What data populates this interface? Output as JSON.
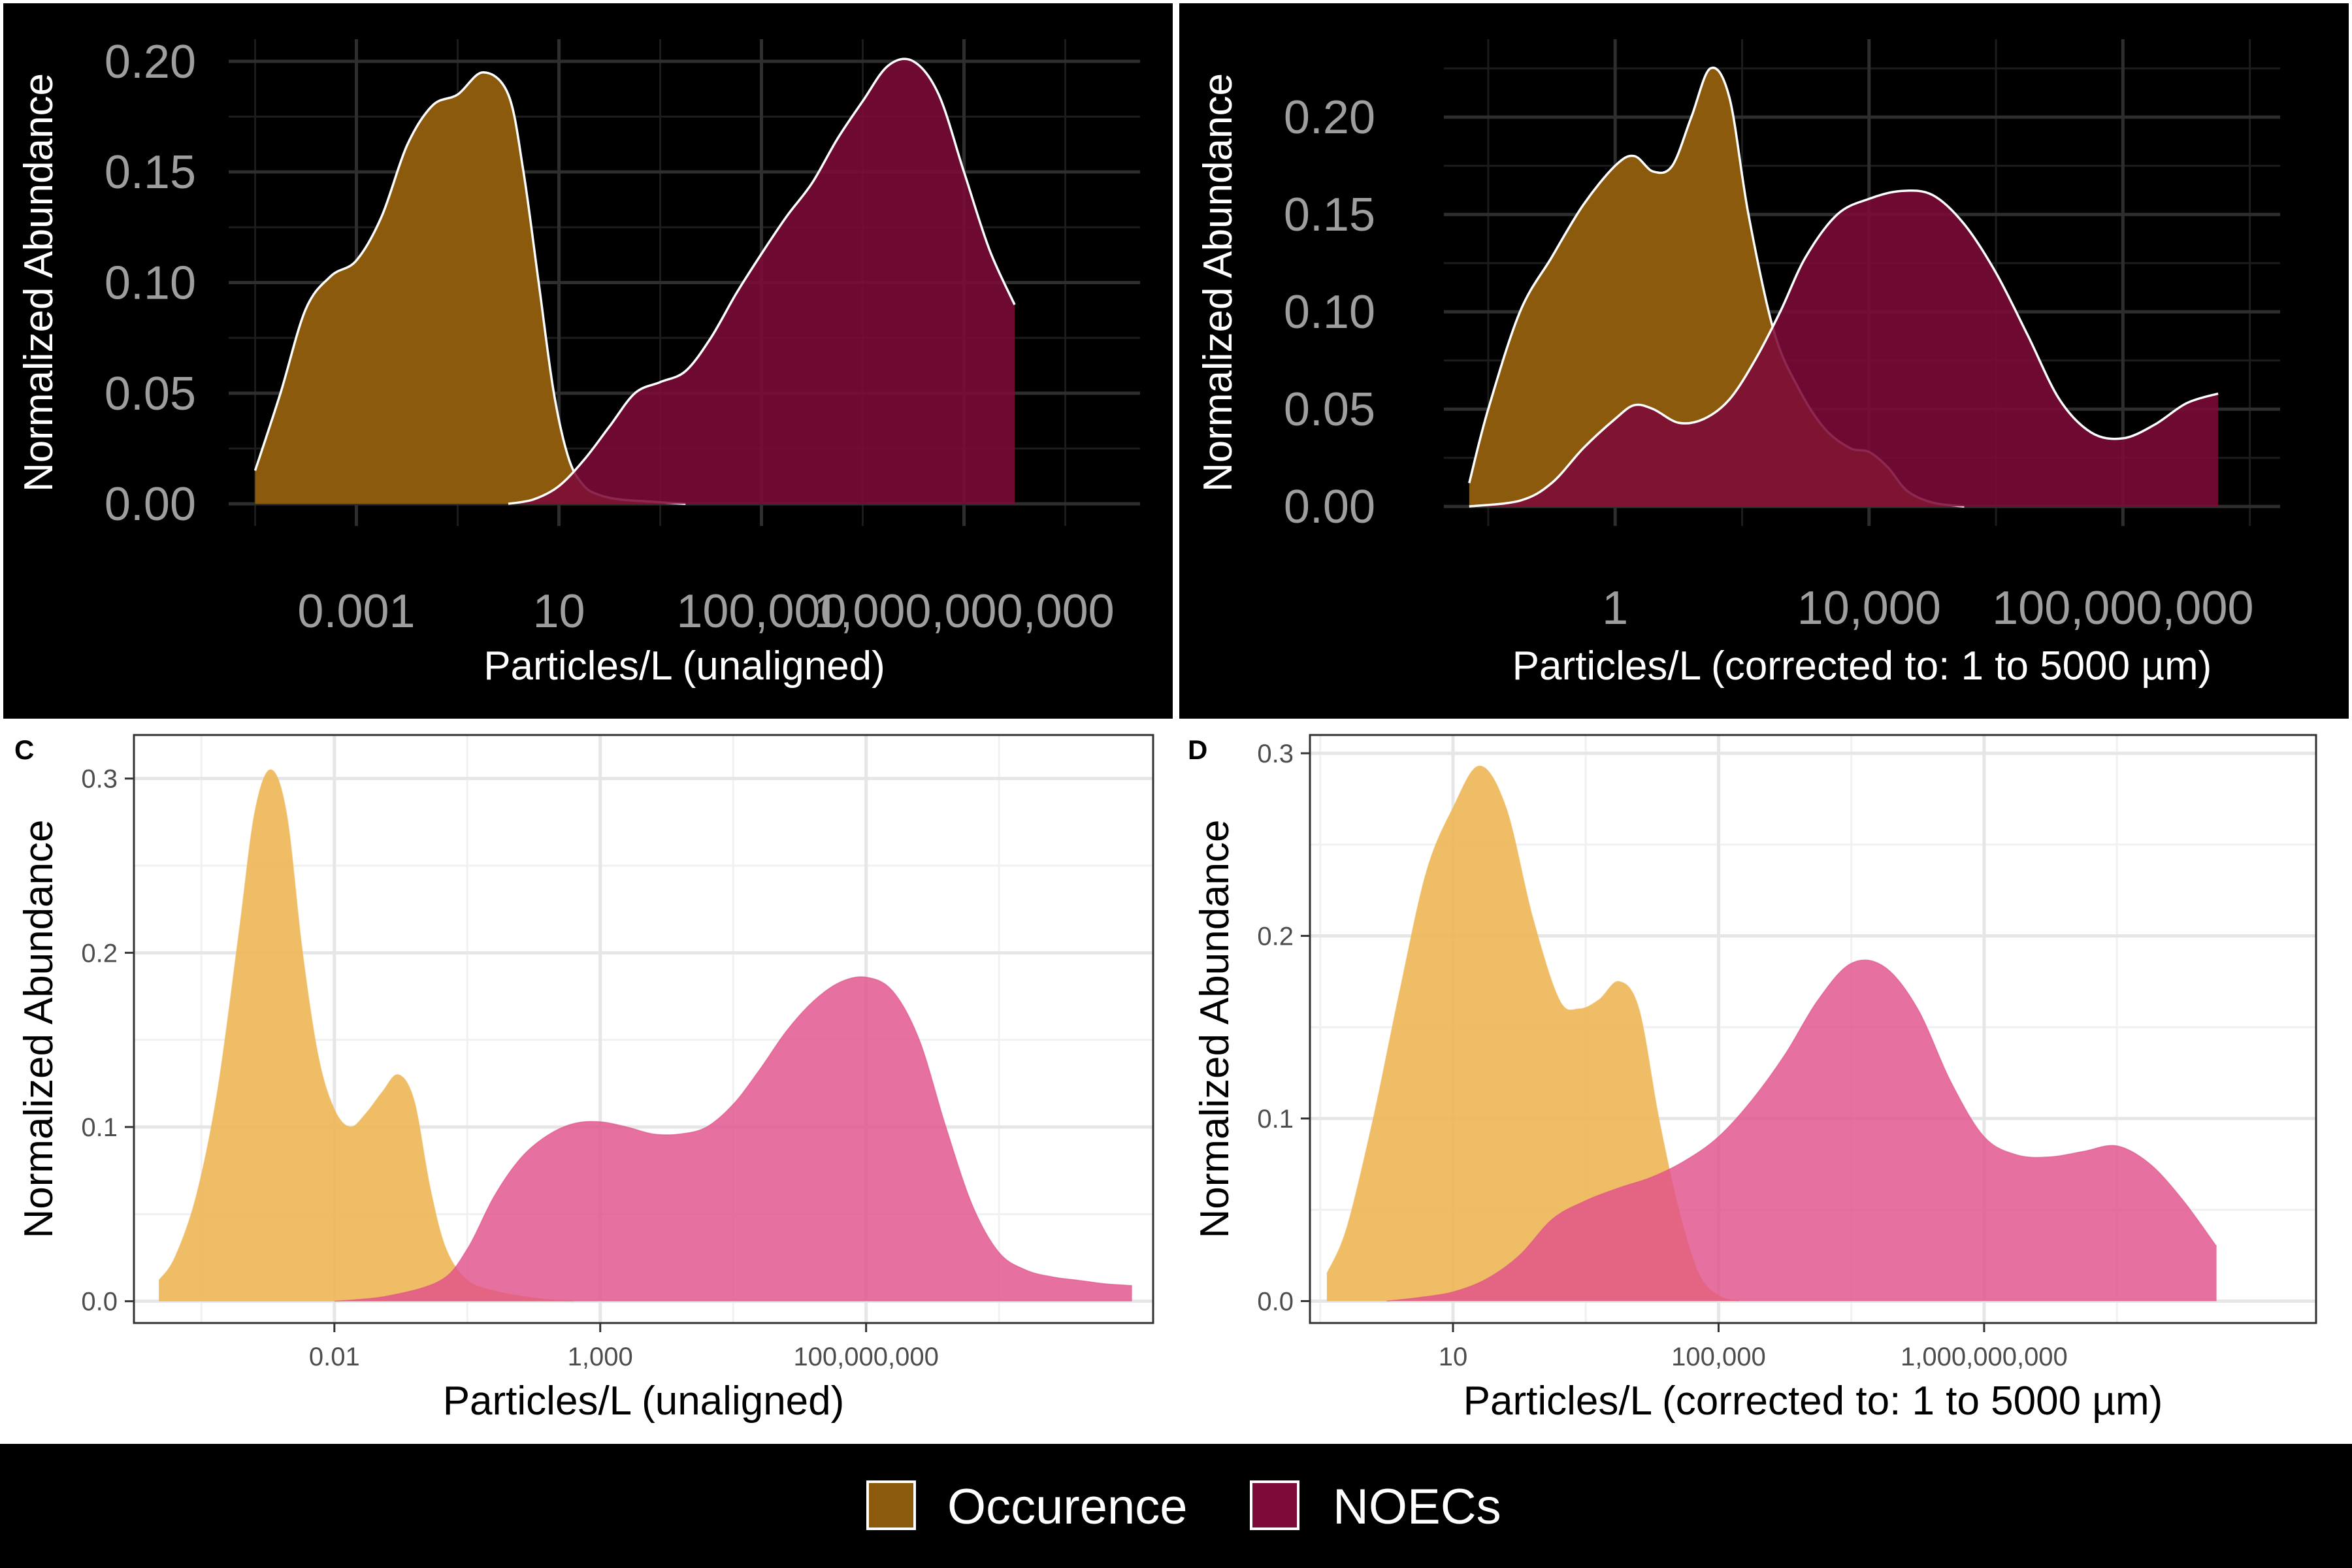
{
  "legend": {
    "items": [
      {
        "label": "Occurence",
        "color": "#8b5a0c"
      },
      {
        "label": "NOECs",
        "color": "#7d0a38"
      }
    ]
  },
  "chart_data": [
    {
      "panel": "",
      "type": "area",
      "theme": "dark",
      "title": "",
      "xlabel": "Particles/L (unaligned)",
      "ylabel": "Normalized Abundance",
      "x_scale": "log10",
      "xlim": [
        3e-06,
        3000000000000
      ],
      "ylim": [
        -0.01,
        0.21
      ],
      "x_ticks": [
        {
          "value": 0.001,
          "label": "0.001"
        },
        {
          "value": 10,
          "label": "10"
        },
        {
          "value": 100000,
          "label": "100,000"
        },
        {
          "value": 1000000000,
          "label": "1,000,000,000"
        }
      ],
      "y_ticks": [
        {
          "value": 0,
          "label": "0.00"
        },
        {
          "value": 0.05,
          "label": "0.05"
        },
        {
          "value": 0.1,
          "label": "0.10"
        },
        {
          "value": 0.15,
          "label": "0.15"
        },
        {
          "value": 0.2,
          "label": "0.20"
        }
      ],
      "grid": true,
      "series": [
        {
          "name": "Occurence",
          "color": "#8b5a0c",
          "stroke": "#ffffff",
          "opacity": 1,
          "points": [
            [
              -5.0,
              0.015
            ],
            [
              -4.5,
              0.05
            ],
            [
              -4.0,
              0.088
            ],
            [
              -3.5,
              0.103
            ],
            [
              -3.0,
              0.11
            ],
            [
              -2.5,
              0.13
            ],
            [
              -2.0,
              0.162
            ],
            [
              -1.5,
              0.18
            ],
            [
              -1.0,
              0.185
            ],
            [
              -0.5,
              0.195
            ],
            [
              0.0,
              0.185
            ],
            [
              0.3,
              0.15
            ],
            [
              0.6,
              0.1
            ],
            [
              0.9,
              0.05
            ],
            [
              1.2,
              0.02
            ],
            [
              1.5,
              0.008
            ],
            [
              1.8,
              0.004
            ],
            [
              2.2,
              0.002
            ],
            [
              2.8,
              0.001
            ],
            [
              3.5,
              0.0
            ]
          ]
        },
        {
          "name": "NOECs",
          "color": "#7d0a38",
          "stroke": "#ffffff",
          "opacity": 0.88,
          "points": [
            [
              0.0,
              0.0
            ],
            [
              0.5,
              0.002
            ],
            [
              1.0,
              0.008
            ],
            [
              1.5,
              0.02
            ],
            [
              2.0,
              0.035
            ],
            [
              2.5,
              0.05
            ],
            [
              3.0,
              0.055
            ],
            [
              3.5,
              0.06
            ],
            [
              4.0,
              0.075
            ],
            [
              4.5,
              0.095
            ],
            [
              5.0,
              0.113
            ],
            [
              5.5,
              0.13
            ],
            [
              6.0,
              0.145
            ],
            [
              6.5,
              0.165
            ],
            [
              7.0,
              0.182
            ],
            [
              7.5,
              0.198
            ],
            [
              8.0,
              0.2
            ],
            [
              8.5,
              0.185
            ],
            [
              9.0,
              0.15
            ],
            [
              9.5,
              0.115
            ],
            [
              10.0,
              0.09
            ]
          ]
        }
      ]
    },
    {
      "panel": "",
      "type": "area",
      "theme": "dark",
      "title": "",
      "xlabel": "Particles/L (corrected to: 1 to 5000 µm)",
      "ylabel": "Normalized Abundance",
      "x_scale": "log10",
      "xlim": [
        0.002,
        30000000000
      ],
      "ylim": [
        -0.01,
        0.24
      ],
      "x_ticks": [
        {
          "value": 1,
          "label": "1"
        },
        {
          "value": 10000,
          "label": "10,000"
        },
        {
          "value": 100000000,
          "label": "100,000,000"
        }
      ],
      "y_ticks": [
        {
          "value": 0,
          "label": "0.00"
        },
        {
          "value": 0.05,
          "label": "0.05"
        },
        {
          "value": 0.1,
          "label": "0.10"
        },
        {
          "value": 0.15,
          "label": "0.15"
        },
        {
          "value": 0.2,
          "label": "0.20"
        }
      ],
      "grid": true,
      "series": [
        {
          "name": "Occurence",
          "color": "#8b5a0c",
          "stroke": "#ffffff",
          "opacity": 1,
          "points": [
            [
              -2.3,
              0.012
            ],
            [
              -2.0,
              0.05
            ],
            [
              -1.5,
              0.1
            ],
            [
              -1.0,
              0.128
            ],
            [
              -0.5,
              0.155
            ],
            [
              0.0,
              0.175
            ],
            [
              0.3,
              0.18
            ],
            [
              0.6,
              0.172
            ],
            [
              0.9,
              0.175
            ],
            [
              1.2,
              0.2
            ],
            [
              1.5,
              0.225
            ],
            [
              1.8,
              0.21
            ],
            [
              2.1,
              0.15
            ],
            [
              2.5,
              0.09
            ],
            [
              2.9,
              0.06
            ],
            [
              3.3,
              0.04
            ],
            [
              3.7,
              0.03
            ],
            [
              4.0,
              0.028
            ],
            [
              4.3,
              0.02
            ],
            [
              4.6,
              0.008
            ],
            [
              5.0,
              0.002
            ],
            [
              5.5,
              0.0
            ]
          ]
        },
        {
          "name": "NOECs",
          "color": "#7d0a38",
          "stroke": "#ffffff",
          "opacity": 0.88,
          "points": [
            [
              -2.3,
              0.0
            ],
            [
              -1.5,
              0.003
            ],
            [
              -1.0,
              0.012
            ],
            [
              -0.5,
              0.03
            ],
            [
              0.0,
              0.045
            ],
            [
              0.3,
              0.052
            ],
            [
              0.6,
              0.05
            ],
            [
              1.0,
              0.043
            ],
            [
              1.4,
              0.045
            ],
            [
              1.8,
              0.055
            ],
            [
              2.2,
              0.075
            ],
            [
              2.6,
              0.1
            ],
            [
              3.0,
              0.128
            ],
            [
              3.5,
              0.15
            ],
            [
              4.0,
              0.158
            ],
            [
              4.5,
              0.162
            ],
            [
              5.0,
              0.16
            ],
            [
              5.5,
              0.145
            ],
            [
              6.0,
              0.12
            ],
            [
              6.5,
              0.088
            ],
            [
              7.0,
              0.055
            ],
            [
              7.5,
              0.038
            ],
            [
              8.0,
              0.035
            ],
            [
              8.5,
              0.042
            ],
            [
              9.0,
              0.053
            ],
            [
              9.5,
              0.058
            ]
          ]
        }
      ]
    },
    {
      "panel": "C",
      "type": "area",
      "theme": "light",
      "title": "",
      "xlabel": "Particles/L (unaligned)",
      "ylabel": "Normalized Abundance",
      "x_scale": "log10",
      "xlim": [
        1.7e-06,
        25000000000000
      ],
      "ylim": [
        -0.0125,
        0.325
      ],
      "x_ticks": [
        {
          "value": 0.01,
          "label": "0.01"
        },
        {
          "value": 1000,
          "label": "1,000"
        },
        {
          "value": 100000000,
          "label": "100,000,000"
        }
      ],
      "y_ticks": [
        {
          "value": 0,
          "label": "0.0"
        },
        {
          "value": 0.1,
          "label": "0.1"
        },
        {
          "value": 0.2,
          "label": "0.2"
        },
        {
          "value": 0.3,
          "label": "0.3"
        }
      ],
      "grid": true,
      "series": [
        {
          "name": "Occurence",
          "color": "#efb75a",
          "stroke": "none",
          "opacity": 0.92,
          "points": [
            [
              -5.3,
              0.012
            ],
            [
              -5.0,
              0.025
            ],
            [
              -4.6,
              0.06
            ],
            [
              -4.2,
              0.12
            ],
            [
              -3.8,
              0.21
            ],
            [
              -3.5,
              0.28
            ],
            [
              -3.2,
              0.305
            ],
            [
              -2.9,
              0.28
            ],
            [
              -2.6,
              0.2
            ],
            [
              -2.3,
              0.14
            ],
            [
              -2.0,
              0.11
            ],
            [
              -1.7,
              0.1
            ],
            [
              -1.4,
              0.108
            ],
            [
              -1.1,
              0.12
            ],
            [
              -0.8,
              0.13
            ],
            [
              -0.5,
              0.115
            ],
            [
              -0.2,
              0.065
            ],
            [
              0.1,
              0.03
            ],
            [
              0.5,
              0.012
            ],
            [
              1.0,
              0.006
            ],
            [
              1.5,
              0.003
            ],
            [
              2.0,
              0.001
            ],
            [
              2.5,
              0.0
            ]
          ]
        },
        {
          "name": "NOECs",
          "color": "#e0508a",
          "stroke": "none",
          "opacity": 0.82,
          "points": [
            [
              -2.0,
              0.0
            ],
            [
              -1.0,
              0.003
            ],
            [
              0.0,
              0.012
            ],
            [
              0.5,
              0.03
            ],
            [
              1.0,
              0.06
            ],
            [
              1.5,
              0.082
            ],
            [
              2.0,
              0.095
            ],
            [
              2.5,
              0.102
            ],
            [
              3.0,
              0.103
            ],
            [
              3.5,
              0.1
            ],
            [
              4.0,
              0.096
            ],
            [
              4.5,
              0.096
            ],
            [
              5.0,
              0.1
            ],
            [
              5.5,
              0.113
            ],
            [
              6.0,
              0.133
            ],
            [
              6.5,
              0.155
            ],
            [
              7.0,
              0.172
            ],
            [
              7.5,
              0.183
            ],
            [
              8.0,
              0.186
            ],
            [
              8.5,
              0.178
            ],
            [
              9.0,
              0.15
            ],
            [
              9.5,
              0.1
            ],
            [
              10.0,
              0.055
            ],
            [
              10.5,
              0.028
            ],
            [
              11.0,
              0.018
            ],
            [
              11.5,
              0.014
            ],
            [
              12.0,
              0.012
            ],
            [
              12.5,
              0.01
            ],
            [
              13.0,
              0.009
            ]
          ]
        }
      ]
    },
    {
      "panel": "D",
      "type": "area",
      "theme": "light",
      "title": "",
      "xlabel": "Particles/L (corrected to: 1 to 5000 µm)",
      "ylabel": "Normalized Abundance",
      "x_scale": "log10",
      "xlim": [
        0.07,
        100000000000000
      ],
      "ylim": [
        -0.012,
        0.31
      ],
      "x_ticks": [
        {
          "value": 10,
          "label": "10"
        },
        {
          "value": 100000,
          "label": "100,000"
        },
        {
          "value": 1000000000,
          "label": "1,000,000,000"
        }
      ],
      "y_ticks": [
        {
          "value": 0,
          "label": "0.0"
        },
        {
          "value": 0.1,
          "label": "0.1"
        },
        {
          "value": 0.2,
          "label": "0.2"
        },
        {
          "value": 0.3,
          "label": "0.3"
        }
      ],
      "grid": true,
      "series": [
        {
          "name": "Occurence",
          "color": "#efb75a",
          "stroke": "none",
          "opacity": 0.92,
          "points": [
            [
              -0.9,
              0.015
            ],
            [
              -0.6,
              0.04
            ],
            [
              -0.2,
              0.1
            ],
            [
              0.2,
              0.17
            ],
            [
              0.6,
              0.235
            ],
            [
              1.0,
              0.27
            ],
            [
              1.4,
              0.293
            ],
            [
              1.8,
              0.27
            ],
            [
              2.2,
              0.21
            ],
            [
              2.6,
              0.165
            ],
            [
              2.9,
              0.16
            ],
            [
              3.2,
              0.165
            ],
            [
              3.5,
              0.175
            ],
            [
              3.8,
              0.16
            ],
            [
              4.1,
              0.1
            ],
            [
              4.4,
              0.05
            ],
            [
              4.7,
              0.015
            ],
            [
              5.0,
              0.003
            ],
            [
              5.3,
              0.0
            ]
          ]
        },
        {
          "name": "NOECs",
          "color": "#e0508a",
          "stroke": "none",
          "opacity": 0.82,
          "points": [
            [
              0.0,
              0.0
            ],
            [
              0.5,
              0.002
            ],
            [
              1.0,
              0.005
            ],
            [
              1.5,
              0.012
            ],
            [
              2.0,
              0.025
            ],
            [
              2.5,
              0.045
            ],
            [
              3.0,
              0.055
            ],
            [
              3.5,
              0.062
            ],
            [
              4.0,
              0.068
            ],
            [
              4.5,
              0.077
            ],
            [
              5.0,
              0.09
            ],
            [
              5.5,
              0.11
            ],
            [
              6.0,
              0.135
            ],
            [
              6.5,
              0.165
            ],
            [
              7.0,
              0.185
            ],
            [
              7.5,
              0.183
            ],
            [
              8.0,
              0.16
            ],
            [
              8.5,
              0.12
            ],
            [
              9.0,
              0.09
            ],
            [
              9.5,
              0.08
            ],
            [
              10.0,
              0.079
            ],
            [
              10.5,
              0.082
            ],
            [
              11.0,
              0.085
            ],
            [
              11.5,
              0.075
            ],
            [
              12.0,
              0.055
            ],
            [
              12.5,
              0.03
            ]
          ]
        }
      ]
    }
  ]
}
